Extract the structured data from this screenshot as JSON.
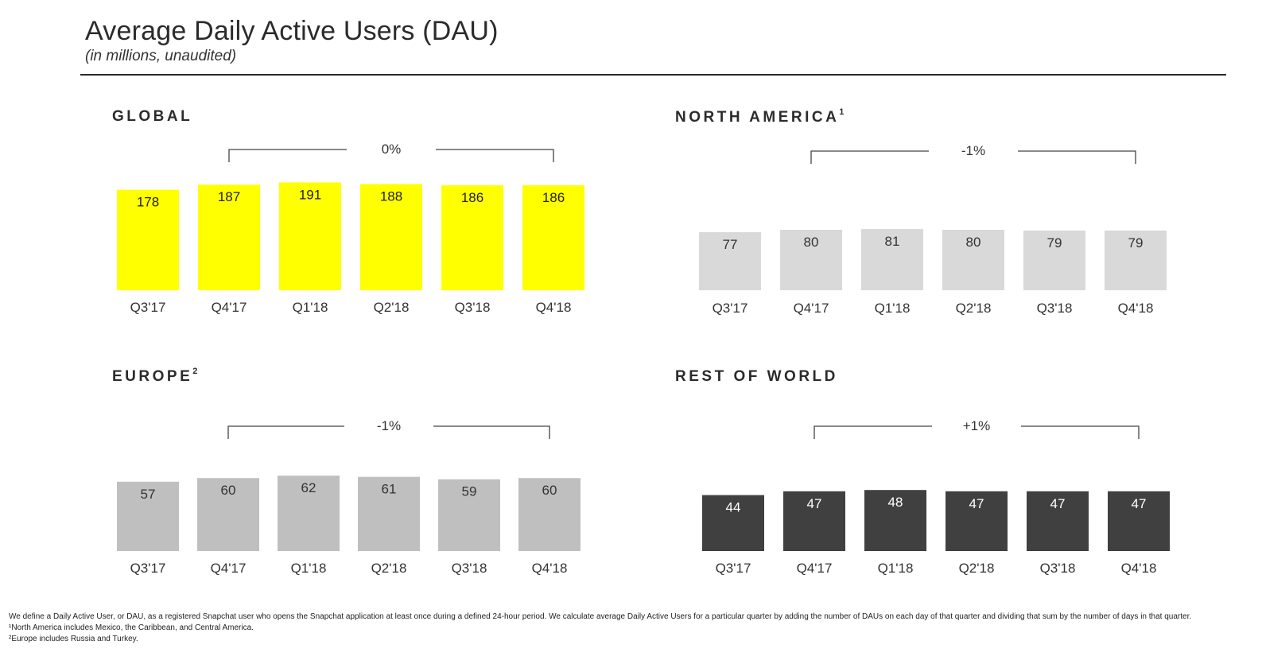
{
  "header": {
    "title": "Average Daily Active Users (DAU)",
    "subtitle": "(in millions, unaudited)"
  },
  "panels": [
    {
      "title": "GLOBAL",
      "sup": ""
    },
    {
      "title": "NORTH AMERICA",
      "sup": "1"
    },
    {
      "title": "EUROPE",
      "sup": "2"
    },
    {
      "title": "REST OF WORLD",
      "sup": ""
    }
  ],
  "chart_data": [
    {
      "type": "bar",
      "title": "GLOBAL",
      "categories": [
        "Q3'17",
        "Q4'17",
        "Q1'18",
        "Q2'18",
        "Q3'18",
        "Q4'18"
      ],
      "values": [
        178,
        187,
        191,
        188,
        186,
        186
      ],
      "data_labels": [
        "178",
        "187",
        "191",
        "188",
        "186",
        "186"
      ],
      "change_label": "0%",
      "bar_color": "#ffff00"
    },
    {
      "type": "bar",
      "title": "NORTH AMERICA",
      "categories": [
        "Q3'17",
        "Q4'17",
        "Q1'18",
        "Q2'18",
        "Q3'18",
        "Q4'18"
      ],
      "values": [
        77,
        80,
        81,
        80,
        79,
        79
      ],
      "data_labels": [
        "77",
        "80",
        "81",
        "80",
        "79",
        "79"
      ],
      "change_label": "-1%",
      "bar_color": "#d9d9d9"
    },
    {
      "type": "bar",
      "title": "EUROPE",
      "categories": [
        "Q3'17",
        "Q4'17",
        "Q1'18",
        "Q2'18",
        "Q3'18",
        "Q4'18"
      ],
      "values": [
        57,
        60,
        62,
        61,
        59,
        60
      ],
      "data_labels": [
        "57",
        "60",
        "62",
        "61",
        "59",
        "60"
      ],
      "change_label": "-1%",
      "bar_color": "#bfbfbf"
    },
    {
      "type": "bar",
      "title": "REST OF WORLD",
      "categories": [
        "Q3'17",
        "Q4'17",
        "Q1'18",
        "Q2'18",
        "Q3'18",
        "Q4'18"
      ],
      "values": [
        44,
        47,
        48,
        47,
        47,
        47
      ],
      "data_labels": [
        "44",
        "47",
        "48",
        "47",
        "47",
        "47"
      ],
      "change_label": "+1%",
      "bar_color": "#404040"
    }
  ],
  "footnotes": {
    "definition": "We define a Daily Active User, or DAU, as a registered Snapchat user who opens the Snapchat application at least once during a defined 24-hour period. We calculate average Daily Active Users for a particular quarter by adding the number of DAUs on each day of that quarter and dividing that sum by the number of days in that quarter.",
    "note1": "¹North America includes Mexico, the Caribbean, and Central America.",
    "note2": "²Europe includes Russia and Turkey."
  }
}
